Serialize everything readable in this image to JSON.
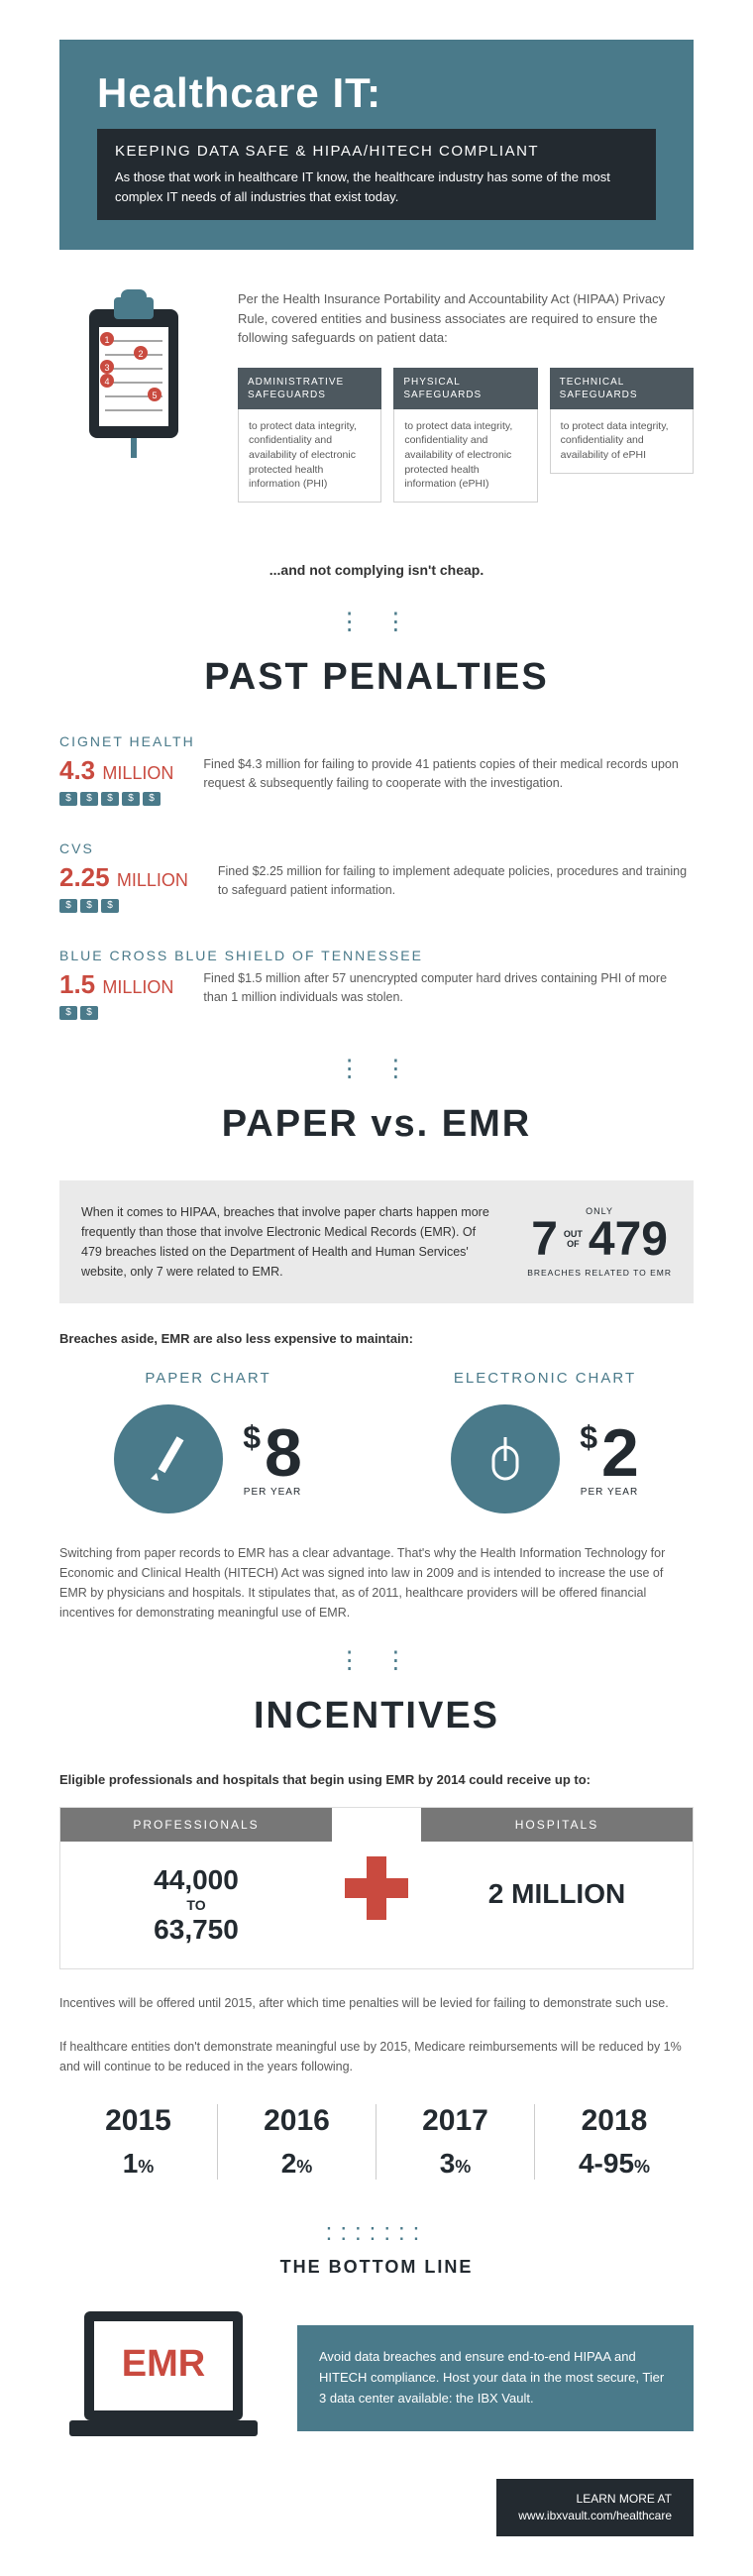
{
  "hero": {
    "title": "Healthcare IT:",
    "subtitle": "KEEPING DATA SAFE & HIPAA/HITECH COMPLIANT",
    "desc": "As those that work in healthcare IT know, the healthcare industry has some of the most complex IT needs of all industries that exist today."
  },
  "intro": "Per the Health Insurance Portability and Accountability Act (HIPAA) Privacy Rule, covered entities and business associates are required to ensure the following safeguards on patient data:",
  "safeguards": [
    {
      "head": "ADMINISTRATIVE SAFEGUARDS",
      "body": "to protect data integrity, confidentiality and availability of electronic protected health information (PHI)"
    },
    {
      "head": "PHYSICAL SAFEGUARDS",
      "body": "to protect data integrity, confidentiality and availability of electronic protected health information (ePHI)"
    },
    {
      "head": "TECHNICAL SAFEGUARDS",
      "body": "to protect data integrity, confidentiality and availability of ePHI"
    }
  ],
  "warn": "...and not complying isn't cheap.",
  "sect_penalties": "PAST PENALTIES",
  "penalties": [
    {
      "name": "CIGNET HEALTH",
      "amt": "4.3",
      "unit": "MILLION",
      "icons": 5,
      "desc": "Fined $4.3 million for failing to provide 41 patients copies of their medical records upon request & subsequently failing to cooperate with the investigation."
    },
    {
      "name": "CVS",
      "amt": "2.25",
      "unit": "MILLION",
      "icons": 3,
      "desc": "Fined $2.25 million for failing to implement adequate policies, procedures and training to safeguard patient information."
    },
    {
      "name": "BLUE CROSS BLUE SHIELD OF TENNESSEE",
      "amt": "1.5",
      "unit": "MILLION",
      "icons": 2,
      "desc": "Fined $1.5 million after 57 unencrypted computer hard drives containing PHI of more than 1 million individuals was stolen."
    }
  ],
  "sect_paper": "PAPER vs. EMR",
  "paper_text": "When it comes to HIPAA, breaches that involve paper charts happen more frequently than those that involve Electronic Medical Records (EMR). Of 479 breaches listed on the Department of Health and Human Services' website, only 7 were related to EMR.",
  "stat": {
    "only": "ONLY",
    "n1": "7",
    "out": "OUT",
    "of": "OF",
    "n2": "479",
    "cap": "BREACHES RELATED TO EMR"
  },
  "breach_sub": "Breaches aside, EMR are also less expensive to maintain:",
  "costs": [
    {
      "label": "PAPER CHART",
      "num": "8",
      "per": "PER YEAR",
      "icon": "pencil"
    },
    {
      "label": "ELECTRONIC CHART",
      "num": "2",
      "per": "PER YEAR",
      "icon": "mouse"
    }
  ],
  "switch_text": "Switching from paper records to EMR has a clear advantage. That's why the Health Information Technology for Economic and Clinical Health (HITECH) Act was signed into law in 2009 and is intended to increase the use of EMR by physicians and hospitals. It stipulates that, as of 2011, healthcare providers will be offered financial incentives for demonstrating meaningful use of EMR.",
  "sect_incent": "INCENTIVES",
  "incent_sub": "Eligible professionals and hospitals that begin using EMR by 2014 could receive up to:",
  "incent_cols": [
    {
      "head": "PROFESSIONALS",
      "v1": "44,000",
      "to": "TO",
      "v2": "63,750"
    },
    {
      "head": "HOSPITALS",
      "v1": "2 MILLION"
    }
  ],
  "incent_p1": "Incentives will be offered until 2015, after which time penalties will be levied for failing to demonstrate such use.",
  "incent_p2": "If healthcare entities don't demonstrate meaningful use by 2015, Medicare reimbursements will be reduced by 1% and will continue to be reduced in the years following.",
  "years": [
    {
      "y": "2015",
      "p": "1"
    },
    {
      "y": "2016",
      "p": "2"
    },
    {
      "y": "2017",
      "p": "3"
    },
    {
      "y": "2018",
      "p": "4-95"
    }
  ],
  "bottom_title": "THE BOTTOM LINE",
  "emr_label": "EMR",
  "bottom_text": "Avoid data breaches and ensure end-to-end HIPAA and HITECH compliance. Host your data in the most secure, Tier 3 data center available: the IBX Vault.",
  "learn": "LEARN MORE AT",
  "url": "www.ibxvault.com/healthcare",
  "colors": {
    "teal": "#4a7a8a",
    "dark": "#232a30",
    "red": "#c94a3f",
    "grey": "#777"
  }
}
